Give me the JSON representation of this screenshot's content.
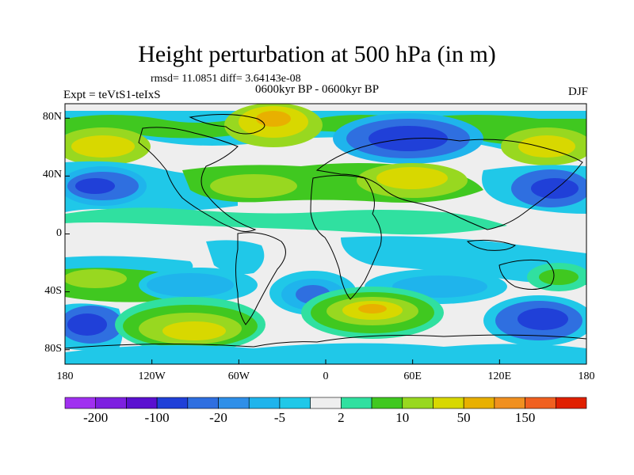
{
  "title": "Height perturbation at 500 hPa (in m)",
  "stats": "rmsd= 11.0851 diff= 3.64143e-08",
  "experiment": "Expt = teVtS1-teIxS",
  "period": "0600kyr BP - 0600kyr BP",
  "season": "DJF",
  "lat_labels": [
    "80N",
    "40N",
    "0",
    "40S",
    "80S"
  ],
  "lon_labels": [
    "180",
    "120W",
    "60W",
    "0",
    "60E",
    "120E",
    "180"
  ],
  "colorbar": {
    "labels": [
      "-200",
      "-100",
      "-20",
      "-5",
      "2",
      "10",
      "50",
      "150"
    ],
    "colors": [
      "#a030f0",
      "#7d20e0",
      "#5a10d0",
      "#2040d8",
      "#2f6fe0",
      "#2f8fe8",
      "#1fb4ec",
      "#20c8e8",
      "#eeeeee",
      "#30e0a0",
      "#40c820",
      "#98d820",
      "#d8d800",
      "#e8b000",
      "#f09020",
      "#f06020",
      "#e02000"
    ]
  },
  "map_colors": {
    "land_line": "#000000",
    "neutral": "#eeeeee",
    "cyan": "#20c8e8",
    "lightblue": "#1fb4ec",
    "blue": "#2f6fe0",
    "darkblue": "#2040d8",
    "lightgreen": "#30e0a0",
    "green": "#40c820",
    "lime": "#98d820",
    "yellow": "#d8d800",
    "orange": "#e8b000"
  }
}
